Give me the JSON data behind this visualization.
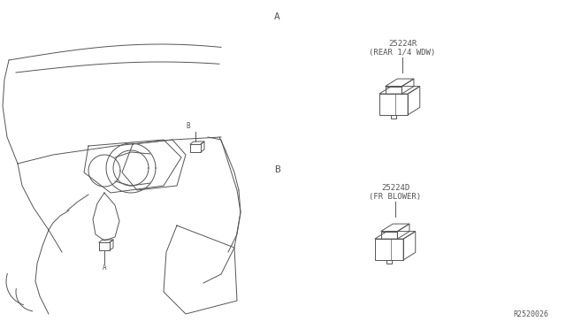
{
  "bg_color": "#ffffff",
  "line_color": "#555555",
  "label_A_top": "A",
  "label_B_mid": "B",
  "part1_code": "25224R",
  "part1_desc": "(REAR 1/4 WDW)",
  "part2_code": "25224D",
  "part2_desc": "(FR BLOWER)",
  "footnote": "R2520026",
  "label_A_diag": "A",
  "label_B_diag": "B",
  "fig_w": 6.4,
  "fig_h": 3.72,
  "dpi": 100
}
